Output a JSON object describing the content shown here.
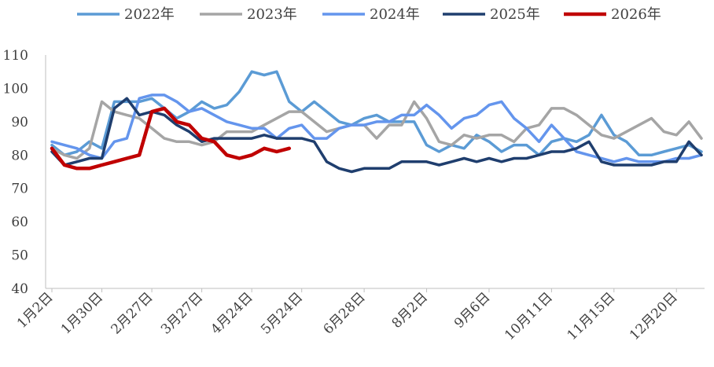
{
  "chart_data": {
    "type": "line",
    "title": "",
    "xlabel": "",
    "ylabel": "",
    "ylim": [
      40,
      110
    ],
    "yticks": [
      40,
      50,
      60,
      70,
      80,
      90,
      100,
      110
    ],
    "x_period_count": 53,
    "x_tick_labels": [
      {
        "label": "1月2日",
        "period": 0
      },
      {
        "label": "1月30日",
        "period": 4
      },
      {
        "label": "2月27日",
        "period": 8
      },
      {
        "label": "3月27日",
        "period": 12
      },
      {
        "label": "4月24日",
        "period": 16
      },
      {
        "label": "5月24日",
        "period": 20
      },
      {
        "label": "6月28日",
        "period": 25
      },
      {
        "label": "8月2日",
        "period": 30
      },
      {
        "label": "9月6日",
        "period": 35
      },
      {
        "label": "10月11日",
        "period": 40
      },
      {
        "label": "11月15日",
        "period": 45
      },
      {
        "label": "12月20日",
        "period": 50
      }
    ],
    "grid": false,
    "legend_position": "top",
    "series": [
      {
        "name": "2022年",
        "color": "#5B9BD5",
        "values": [
          83,
          80,
          81,
          84,
          82,
          96,
          96,
          96,
          97,
          94,
          91,
          93,
          96,
          94,
          95,
          99,
          105,
          104,
          105,
          96,
          93,
          96,
          93,
          90,
          89,
          91,
          92,
          90,
          90,
          90,
          83,
          81,
          83,
          82,
          86,
          84,
          81,
          83,
          83,
          80,
          84,
          85,
          84,
          86,
          92,
          86,
          84,
          80,
          80,
          81,
          82,
          83,
          81
        ]
      },
      {
        "name": "2023年",
        "color": "#A5A5A5",
        "values": [
          82,
          80,
          79,
          82,
          96,
          93,
          92,
          91,
          88,
          85,
          84,
          84,
          83,
          84,
          87,
          87,
          87,
          89,
          91,
          93,
          93,
          90,
          87,
          88,
          89,
          89,
          85,
          89,
          89,
          96,
          91,
          84,
          83,
          86,
          85,
          86,
          86,
          84,
          88,
          89,
          94,
          94,
          92,
          89,
          86,
          85,
          87,
          89,
          91,
          87,
          86,
          90,
          85
        ]
      },
      {
        "name": "2024年",
        "color": "#6495ED",
        "values": [
          84,
          83,
          82,
          80,
          79,
          84,
          85,
          97,
          98,
          98,
          96,
          93,
          94,
          92,
          90,
          89,
          88,
          88,
          85,
          88,
          89,
          85,
          85,
          88,
          89,
          89,
          90,
          90,
          92,
          92,
          95,
          92,
          88,
          91,
          92,
          95,
          96,
          91,
          88,
          84,
          89,
          85,
          81,
          80,
          79,
          78,
          79,
          78,
          78,
          78,
          79,
          79,
          80
        ]
      },
      {
        "name": "2025年",
        "color": "#1F3E6E",
        "values": [
          81,
          77,
          78,
          79,
          79,
          94,
          97,
          92,
          93,
          92,
          89,
          87,
          84,
          85,
          85,
          85,
          85,
          86,
          85,
          85,
          85,
          84,
          78,
          76,
          75,
          76,
          76,
          76,
          78,
          78,
          78,
          77,
          78,
          79,
          78,
          79,
          78,
          79,
          79,
          80,
          81,
          81,
          82,
          84,
          78,
          77,
          77,
          77,
          77,
          78,
          78,
          84,
          80
        ]
      },
      {
        "name": "2026年",
        "color": "#C00000",
        "values": [
          82,
          77,
          76,
          76,
          77,
          78,
          79,
          80,
          93,
          94,
          90,
          89,
          85,
          84,
          80,
          79,
          80,
          82,
          81,
          82
        ]
      }
    ]
  }
}
